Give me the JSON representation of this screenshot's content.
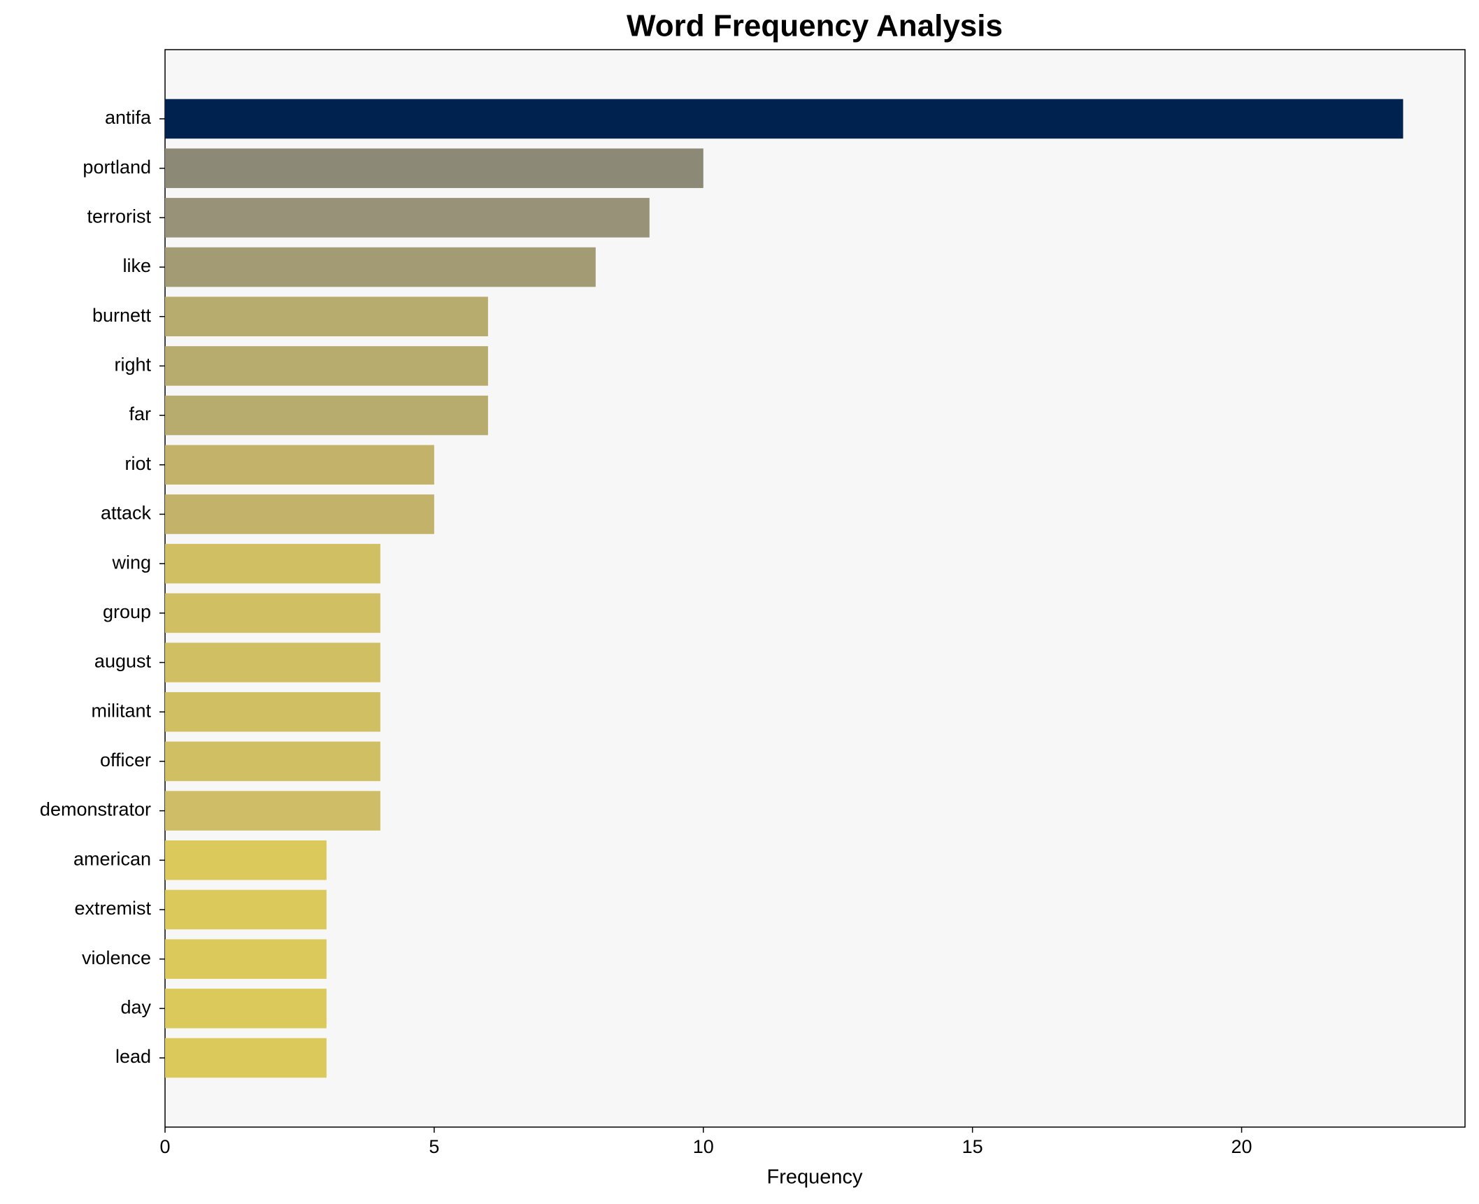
{
  "chart_data": {
    "type": "barh",
    "title": "Word Frequency Analysis",
    "xlabel": "Frequency",
    "categories": [
      "antifa",
      "portland",
      "terrorist",
      "like",
      "burnett",
      "right",
      "far",
      "riot",
      "attack",
      "wing",
      "group",
      "august",
      "militant",
      "officer",
      "demonstrator",
      "american",
      "extremist",
      "violence",
      "day",
      "lead"
    ],
    "values": [
      23,
      10,
      9,
      8,
      6,
      6,
      6,
      5,
      5,
      4,
      4,
      4,
      4,
      4,
      4,
      3,
      3,
      3,
      3,
      3
    ],
    "colors": [
      "#00224e",
      "#8c8a76",
      "#989279",
      "#a39b74",
      "#b8ab6e",
      "#b8ab6e",
      "#b8ab6e",
      "#c3b26a",
      "#c3b26a",
      "#d0c063",
      "#d0c063",
      "#d0c063",
      "#d0c063",
      "#d0c063",
      "#cfbe67",
      "#dcc95c",
      "#dcc95c",
      "#dcc95c",
      "#dcc95c",
      "#dcc95c"
    ],
    "xlim": [
      0,
      24.15
    ],
    "xticks": [
      0,
      5,
      10,
      15,
      20
    ]
  }
}
